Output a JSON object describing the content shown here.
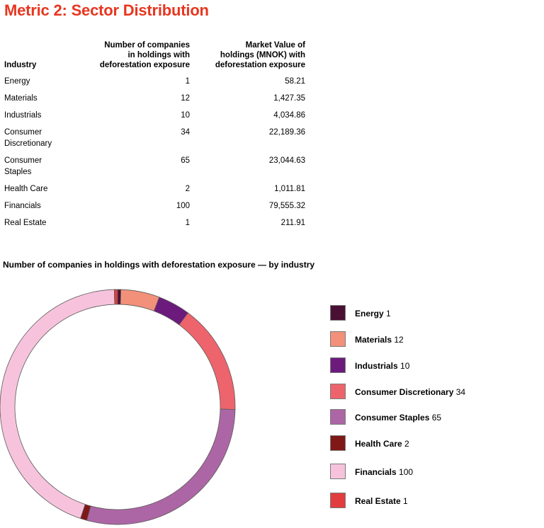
{
  "page_title": "Metric 2: Sector Distribution",
  "table": {
    "headers": [
      "Industry",
      "Number of companies\nin holdings with\ndeforestation exposure",
      "Market Value of\nholdings (MNOK) with\ndeforestation exposure"
    ],
    "rows": [
      {
        "industry": "Energy",
        "count": "1",
        "value": "58.21"
      },
      {
        "industry": "Materials",
        "count": "12",
        "value": "1,427.35"
      },
      {
        "industry": "Industrials",
        "count": "10",
        "value": "4,034.86"
      },
      {
        "industry": "Consumer\nDiscretionary",
        "count": "34",
        "value": "22,189.36"
      },
      {
        "industry": "Consumer\nStaples",
        "count": "65",
        "value": "23,044.63"
      },
      {
        "industry": "Health Care",
        "count": "2",
        "value": "1,011.81"
      },
      {
        "industry": "Financials",
        "count": "100",
        "value": "79,555.32"
      },
      {
        "industry": "Real Estate",
        "count": "1",
        "value": "211.91"
      }
    ]
  },
  "chart_data": {
    "type": "pie",
    "style": "donut",
    "title": "Number of companies in holdings with deforestation exposure — by industry",
    "start_angle_deg": 0,
    "direction": "clockwise",
    "legend_position": "right",
    "categories": [
      "Energy",
      "Materials",
      "Industrials",
      "Consumer Discretionary",
      "Consumer Staples",
      "Health Care",
      "Financials",
      "Real Estate"
    ],
    "values": [
      1,
      12,
      10,
      34,
      65,
      2,
      100,
      1
    ],
    "colors": [
      "#4a1033",
      "#f2907a",
      "#6c1a7c",
      "#ee646c",
      "#ad66a5",
      "#801818",
      "#f7c3dc",
      "#e23c3e"
    ]
  }
}
